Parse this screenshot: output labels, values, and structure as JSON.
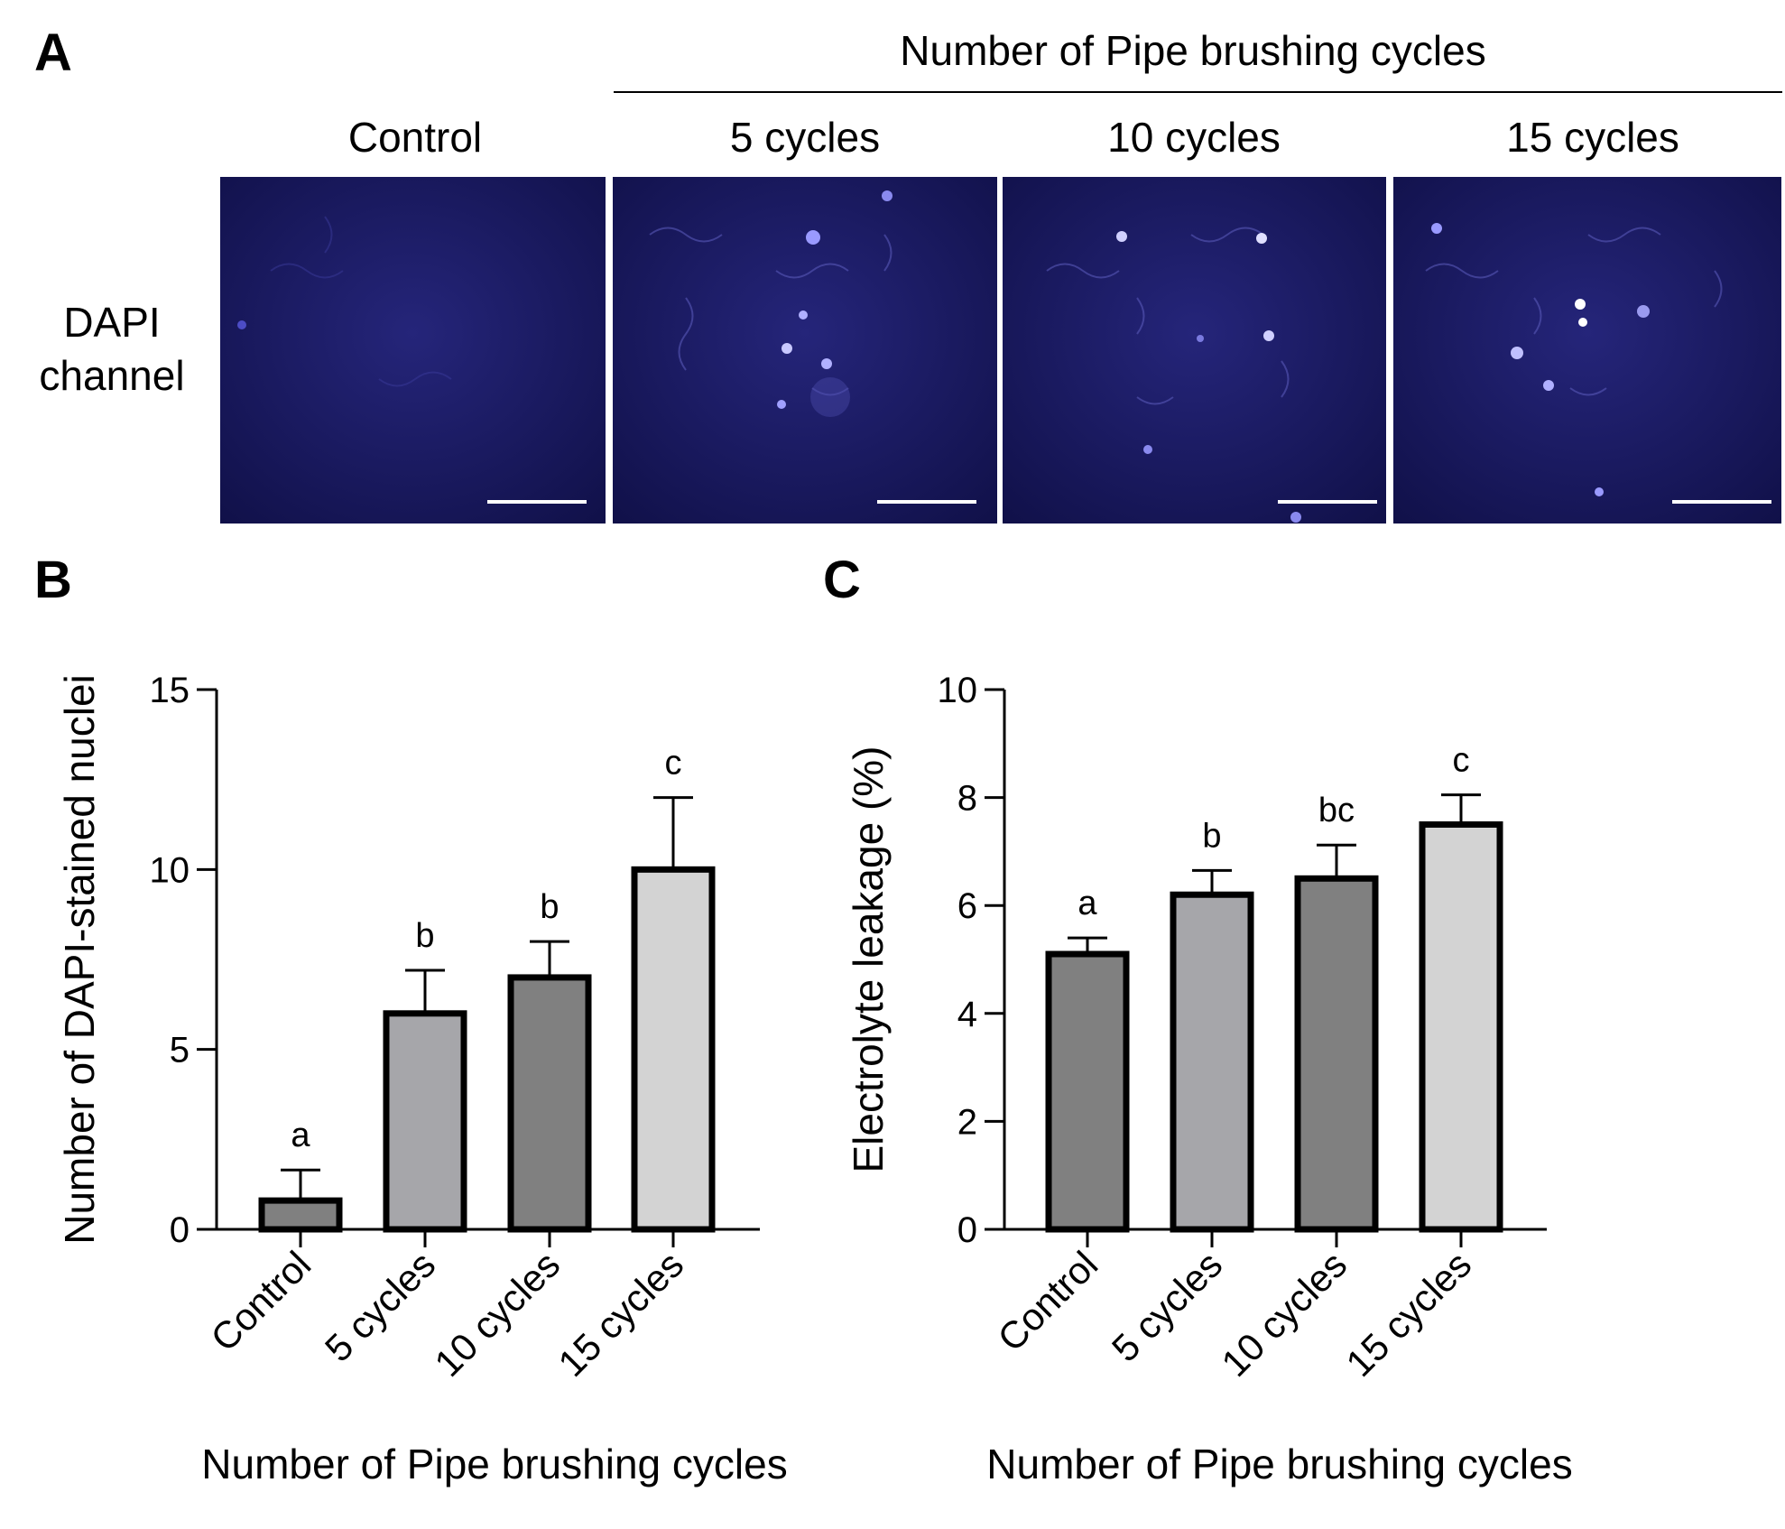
{
  "panel_a": {
    "letter": "A",
    "header": "Number of Pipe brushing cycles",
    "row_label_line1": "DAPI",
    "row_label_line2": "channel",
    "columns": [
      "Control",
      "5 cycles",
      "10 cycles",
      "15 cycles"
    ],
    "image_color": "#1a1a6e"
  },
  "chart_data": [
    {
      "letter": "B",
      "type": "bar",
      "categories": [
        "Control",
        "5 cycles",
        "10 cycles",
        "15 cycles"
      ],
      "values": [
        0.8,
        6.0,
        7.0,
        10.0
      ],
      "errors": [
        0.85,
        1.2,
        1.0,
        2.0
      ],
      "group_letters": [
        "a",
        "b",
        "b",
        "c"
      ],
      "bar_colors": [
        "#808080",
        "#a6a6aa",
        "#808080",
        "#d3d3d3"
      ],
      "ylabel": "Number of DAPI-stained nuclei",
      "xlabel": "Number of Pipe brushing cycles",
      "ylim": [
        0,
        15
      ],
      "yticks": [
        "0",
        "5",
        "10",
        "15"
      ],
      "yticks_values": [
        0,
        5,
        10,
        15
      ]
    },
    {
      "letter": "C",
      "type": "bar",
      "categories": [
        "Control",
        "5 cycles",
        "10 cycles",
        "15 cycles"
      ],
      "values": [
        5.1,
        6.2,
        6.5,
        7.5
      ],
      "errors": [
        0.3,
        0.45,
        0.62,
        0.55
      ],
      "group_letters": [
        "a",
        "b",
        "bc",
        "c"
      ],
      "bar_colors": [
        "#808080",
        "#a6a6aa",
        "#808080",
        "#d3d3d3"
      ],
      "ylabel": "Electrolyte leakage (%)",
      "xlabel": "Number of Pipe brushing cycles",
      "ylim": [
        0,
        10
      ],
      "yticks": [
        "0",
        "2",
        "4",
        "6",
        "8",
        "10"
      ],
      "yticks_values": [
        0,
        2,
        4,
        6,
        8,
        10
      ]
    }
  ]
}
